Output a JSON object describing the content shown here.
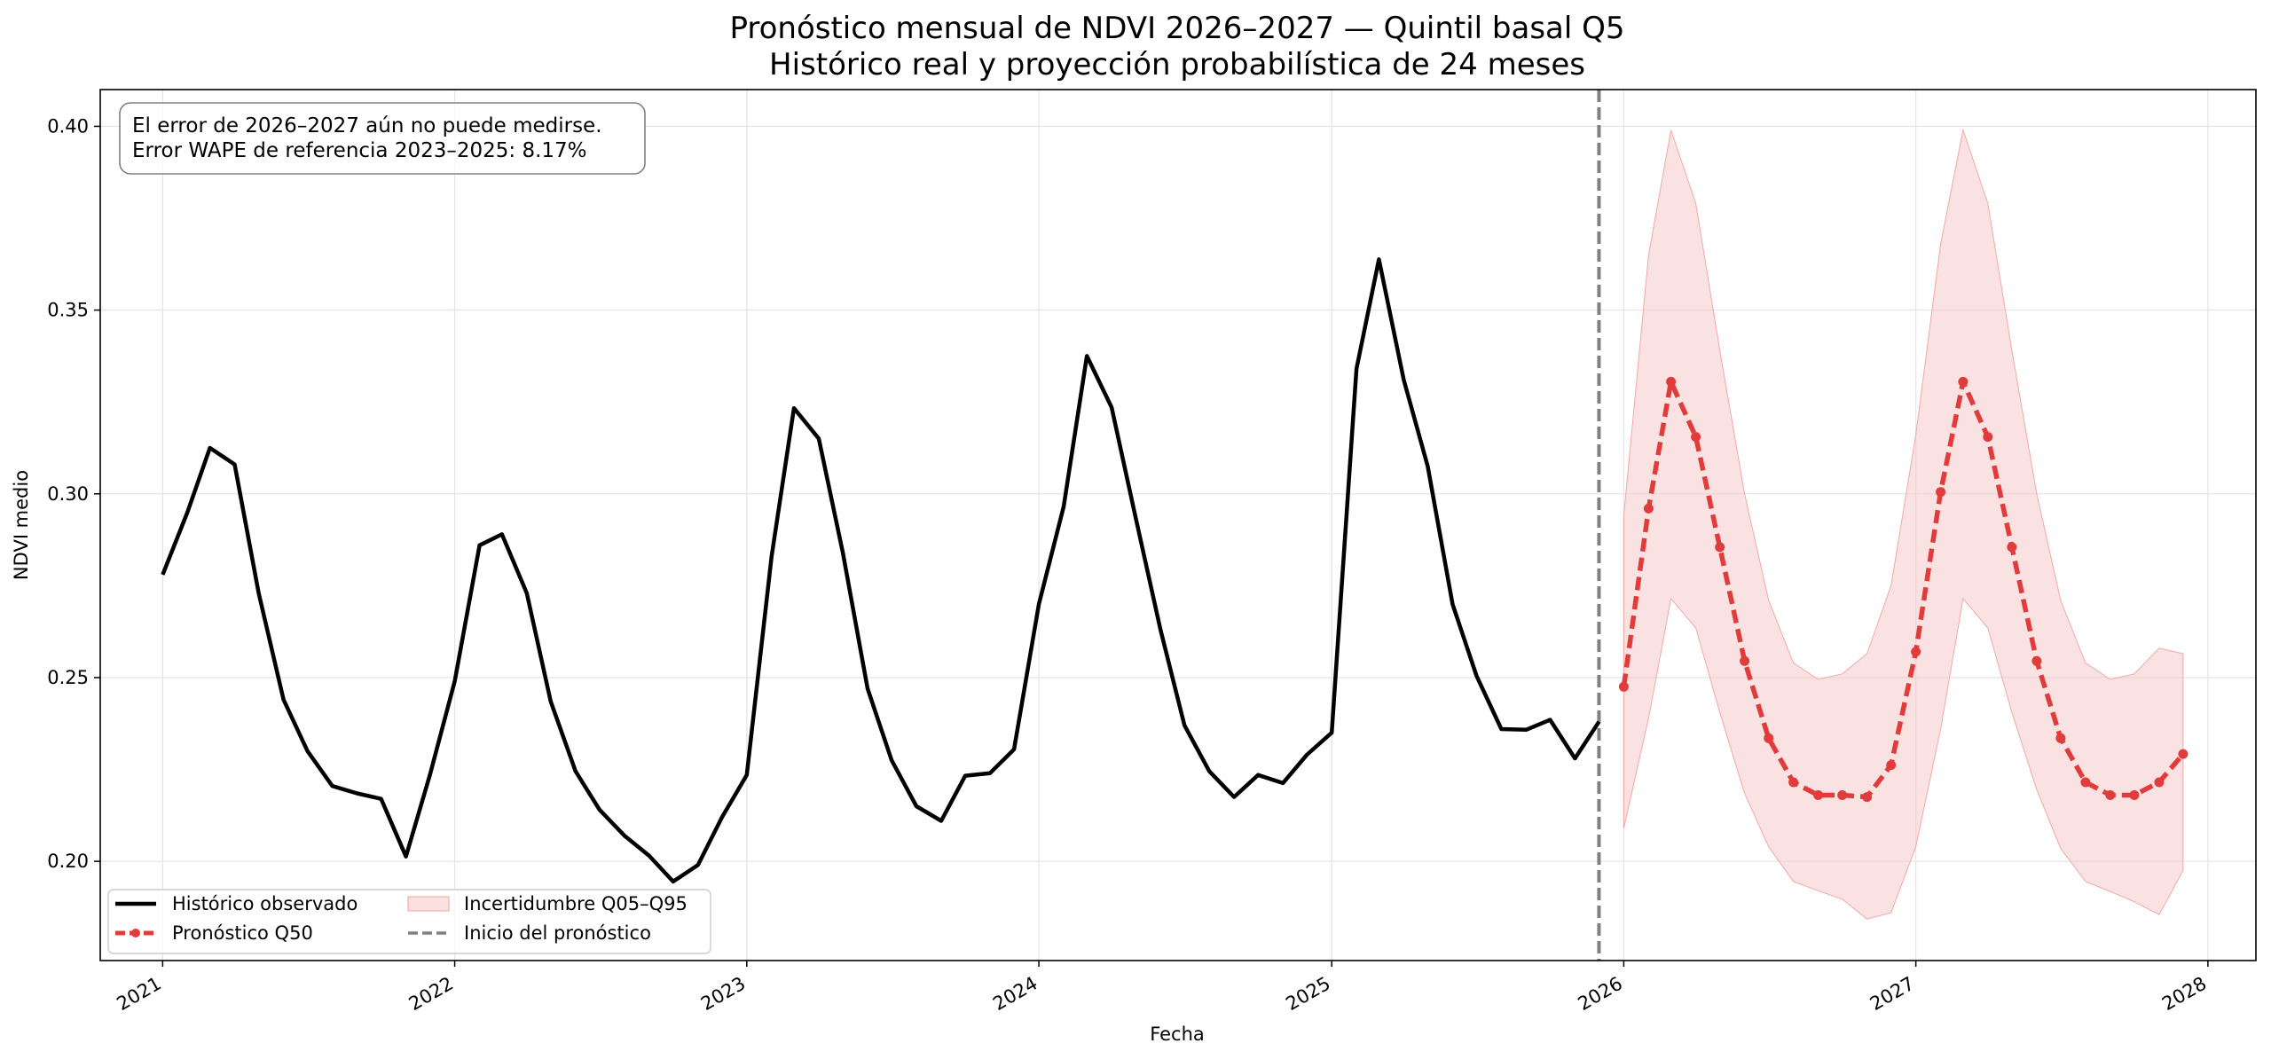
{
  "chart_data": {
    "type": "line",
    "title_lines": [
      "Pronóstico mensual de NDVI 2026–2027 — Quintil basal Q5",
      "Histórico real y proyección probabilística de 24 meses"
    ],
    "xlabel": "Fecha",
    "ylabel": "NDVI medio",
    "xlim": [
      "2020-10-15",
      "2028-03-01"
    ],
    "ylim": [
      0.173,
      0.41
    ],
    "x_ticks": [
      {
        "date": "2021-01-01",
        "label": "2021"
      },
      {
        "date": "2022-01-01",
        "label": "2022"
      },
      {
        "date": "2023-01-01",
        "label": "2023"
      },
      {
        "date": "2024-01-01",
        "label": "2024"
      },
      {
        "date": "2025-01-01",
        "label": "2025"
      },
      {
        "date": "2026-01-01",
        "label": "2026"
      },
      {
        "date": "2027-01-01",
        "label": "2027"
      },
      {
        "date": "2028-01-01",
        "label": "2028"
      }
    ],
    "y_ticks": [
      {
        "value": 0.2,
        "label": "0.20"
      },
      {
        "value": 0.25,
        "label": "0.25"
      },
      {
        "value": 0.3,
        "label": "0.30"
      },
      {
        "value": 0.35,
        "label": "0.35"
      },
      {
        "value": 0.4,
        "label": "0.40"
      }
    ],
    "grid": true,
    "forecast_start": "2025-12-01",
    "annotation_lines": [
      "El error de 2026–2027 aún no puede medirse.",
      "Error WAPE de referencia 2023–2025: 8.17%"
    ],
    "legend": {
      "placement": "lower-left",
      "entries": [
        {
          "key": "historico",
          "label": "Histórico observado"
        },
        {
          "key": "pronostico",
          "label": "Pronóstico Q50"
        },
        {
          "key": "incertidumbre",
          "label": "Incertidumbre Q05–Q95"
        },
        {
          "key": "inicio",
          "label": "Inicio del pronóstico"
        }
      ]
    },
    "colors": {
      "historico": "#000000",
      "pronostico": "#e03c3c",
      "band": "#f7c6c6",
      "inicio": "#808080"
    },
    "series": [
      {
        "key": "historico",
        "start": "2021-01",
        "values": [
          0.278,
          0.295,
          0.3125,
          0.308,
          0.273,
          0.244,
          0.23,
          0.2205,
          0.2185,
          0.217,
          0.2013,
          0.2235,
          0.249,
          0.286,
          0.289,
          0.273,
          0.2435,
          0.2245,
          0.214,
          0.207,
          0.2015,
          0.1945,
          0.199,
          0.212,
          0.2235,
          0.283,
          0.3233,
          0.315,
          0.284,
          0.247,
          0.2275,
          0.215,
          0.211,
          0.2233,
          0.224,
          0.2305,
          0.27,
          0.2965,
          0.3375,
          0.3235,
          0.2935,
          0.263,
          0.237,
          0.2245,
          0.2175,
          0.2235,
          0.2213,
          0.229,
          0.235,
          0.334,
          0.3638,
          0.331,
          0.3075,
          0.27,
          0.2505,
          0.236,
          0.2358,
          0.2385,
          0.228,
          0.238
        ]
      },
      {
        "key": "pronostico",
        "start": "2026-01",
        "values": [
          0.2475,
          0.296,
          0.3305,
          0.3155,
          0.2855,
          0.2545,
          0.2335,
          0.2215,
          0.218,
          0.218,
          0.2175,
          0.2262,
          0.257,
          0.3005,
          0.3305,
          0.3155,
          0.2855,
          0.2545,
          0.2335,
          0.2215,
          0.218,
          0.218,
          0.2215,
          0.2292
        ]
      }
    ],
    "band": {
      "key": "incertidumbre",
      "start": "2026-01",
      "lower": [
        0.209,
        0.239,
        0.2715,
        0.2635,
        0.2405,
        0.2185,
        0.204,
        0.1945,
        0.192,
        0.1897,
        0.1843,
        0.186,
        0.204,
        0.236,
        0.2715,
        0.2635,
        0.2405,
        0.2195,
        0.2035,
        0.1945,
        0.1918,
        0.189,
        0.1855,
        0.1975
      ],
      "upper": [
        0.294,
        0.365,
        0.399,
        0.379,
        0.339,
        0.3,
        0.271,
        0.254,
        0.2495,
        0.251,
        0.2565,
        0.275,
        0.316,
        0.368,
        0.399,
        0.379,
        0.339,
        0.3,
        0.271,
        0.254,
        0.2495,
        0.251,
        0.258,
        0.2565
      ]
    }
  }
}
